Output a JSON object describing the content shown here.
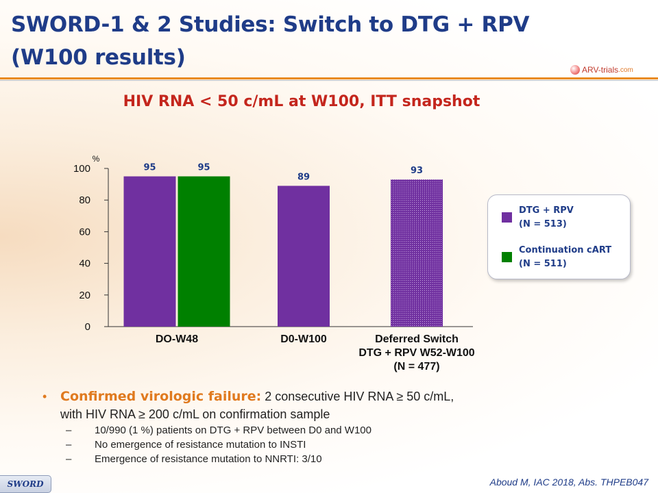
{
  "title_line1": "SWORD-1 & 2 Studies: Switch to DTG + RPV",
  "title_line2": "(W100 results)",
  "logo": {
    "text": "ARV-trials",
    "tail": ".com"
  },
  "subtitle": "HIV RNA < 50 c/mL at W100, ITT snapshot",
  "colors": {
    "dtg_rpv": "#7030a0",
    "continuation": "#008000",
    "title": "#1f3c88",
    "accent": "#e07a1f",
    "subtitle": "#c4261d"
  },
  "chart_data": {
    "type": "bar",
    "ylabel": "%",
    "ylim": [
      0,
      100
    ],
    "yticks": [
      0,
      20,
      40,
      60,
      80,
      100
    ],
    "grid": false,
    "legend_position": "right",
    "groups": [
      {
        "label_lines": [
          "DO-W48"
        ],
        "bars": [
          {
            "series": "DTG + RPV",
            "value": 95,
            "fill": "solid-purple"
          },
          {
            "series": "Continuation cART",
            "value": 95,
            "fill": "solid-green"
          }
        ]
      },
      {
        "label_lines": [
          "D0-W100"
        ],
        "bars": [
          {
            "series": "DTG + RPV",
            "value": 89,
            "fill": "solid-purple"
          }
        ]
      },
      {
        "label_lines": [
          "Deferred Switch",
          "DTG + RPV W52-W100",
          "(N = 477)"
        ],
        "bars": [
          {
            "series": "DTG + RPV",
            "value": 93,
            "fill": "dotted-purple"
          }
        ]
      }
    ],
    "series": [
      {
        "name": "DTG + RPV",
        "name_n": "(N = 513)",
        "color": "#7030a0"
      },
      {
        "name": "Continuation cART",
        "name_n": "(N = 511)",
        "color": "#008000"
      }
    ]
  },
  "bullet": {
    "emphasis": "Confirmed virologic failure:",
    "text_line1": "2 consecutive HIV RNA  ≥  50 c/mL,",
    "text_line2": "with HIV RNA  ≥  200 c/mL  on confirmation sample",
    "subitems": [
      "10/990 (1 %) patients on DTG + RPV between D0 and W100",
      "No emergence of resistance mutation to INSTI",
      "Emergence of resistance mutation to NNRTI: 3/10"
    ]
  },
  "footer_tag": "SWORD",
  "citation": "Aboud M, IAC 2018, Abs. THPEB047"
}
